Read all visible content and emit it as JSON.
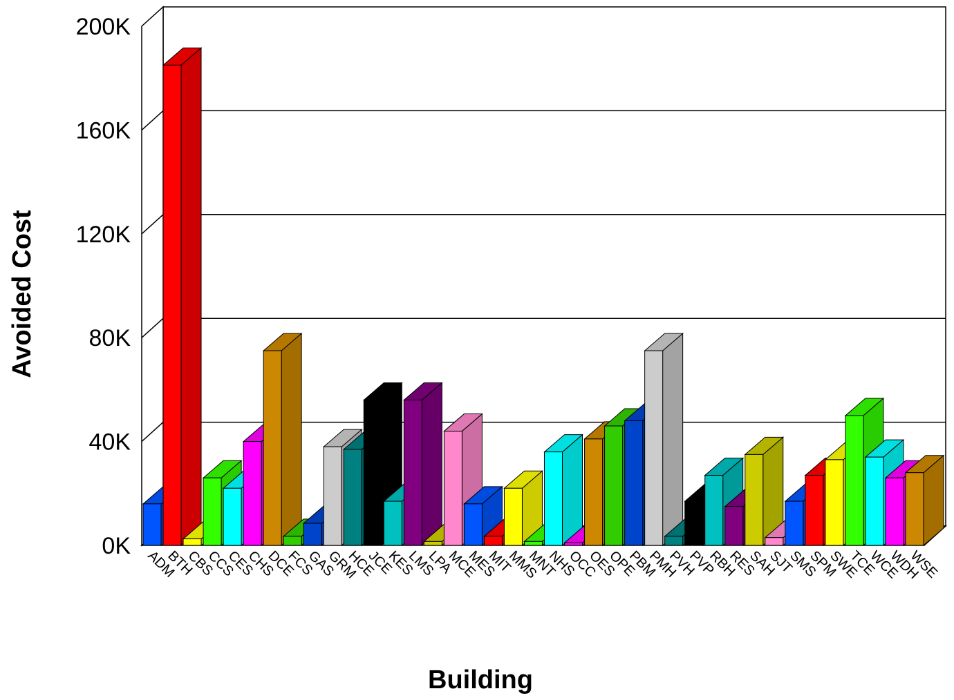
{
  "chart_data": {
    "type": "bar",
    "title": "",
    "xlabel": "Building",
    "ylabel": "Avoided Cost",
    "ylim": [
      0,
      200000
    ],
    "yticks": [
      "0K",
      "40K",
      "80K",
      "120K",
      "160K",
      "200K"
    ],
    "grid": true,
    "legend": "none",
    "style": "3d",
    "categories": [
      "ADM",
      "BTH",
      "CBS",
      "CCS",
      "CES",
      "CHS",
      "DCE",
      "FCS",
      "GAS",
      "GRM",
      "HCE",
      "JCE",
      "KES",
      "LMS",
      "LPA",
      "MCE",
      "MES",
      "MIT",
      "MMS",
      "MNT",
      "NHS",
      "OCC",
      "OES",
      "OPE",
      "PBM",
      "PMH",
      "PVH",
      "PVP",
      "RBH",
      "RES",
      "SAH",
      "SJT",
      "SMS",
      "SPM",
      "SWE",
      "TCE",
      "WCE",
      "WDH",
      "WSE"
    ],
    "values": [
      16000,
      185000,
      2500,
      26000,
      22000,
      40000,
      75000,
      3500,
      8500,
      38000,
      37000,
      56000,
      17000,
      56000,
      1500,
      44000,
      16000,
      3500,
      22000,
      1500,
      36000,
      1000,
      41000,
      46000,
      48000,
      75000,
      3500,
      17000,
      27000,
      15000,
      35000,
      3000,
      17000,
      27000,
      33000,
      50000,
      34000,
      26000,
      28000
    ],
    "colors": [
      "#0055FF",
      "#FF0000",
      "#FFFF00",
      "#33FF00",
      "#00FFFF",
      "#FF00FF",
      "#CC8800",
      "#33CC00",
      "#0044CC",
      "#CCCCCC",
      "#008080",
      "#000000",
      "#00C0C0",
      "#800080",
      "#CCCC00",
      "#FF88CC",
      "#0055FF",
      "#FF0000",
      "#FFFF00",
      "#33FF00",
      "#00FFFF",
      "#FF00FF",
      "#CC8800",
      "#33CC00",
      "#0044CC",
      "#CCCCCC",
      "#008080",
      "#000000",
      "#00C0C0",
      "#800080",
      "#CCCC00",
      "#FF88CC",
      "#0055FF",
      "#FF0000",
      "#FFFF00",
      "#33FF00",
      "#00FFFF",
      "#FF00FF",
      "#CC8800"
    ]
  }
}
